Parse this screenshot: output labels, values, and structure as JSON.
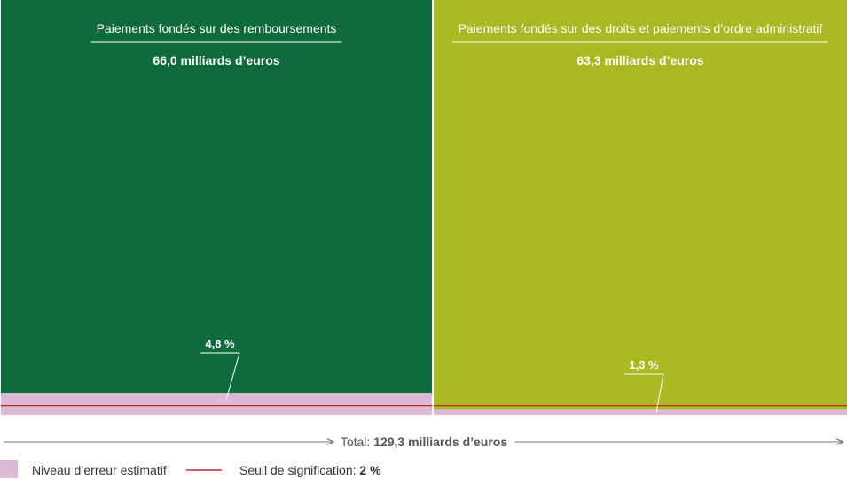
{
  "chart_data": {
    "type": "area",
    "categories": [
      {
        "name": "Paiements fondés sur des remboursements",
        "value_label": "66,0 milliards d’euros",
        "value": 66.0,
        "error_rate": 4.8,
        "error_label": "4,8 %"
      },
      {
        "name": "Paiements fondés sur des droits et paiements d’ordre administratif",
        "value_label": "63,3 milliards d’euros",
        "value": 63.3,
        "error_rate": 1.3,
        "error_label": "1,3 %"
      }
    ],
    "total": {
      "prefix": "Total:",
      "value_label": "129,3 milliards d’euros",
      "value": 129.3
    },
    "materiality_threshold": 2,
    "legend": {
      "error": "Niveau d’erreur estimatif",
      "threshold_prefix": "Seuil de signification:",
      "threshold_value": "2 %"
    },
    "colors": {
      "panel1": "#0f6b3b",
      "panel2": "#a9b921",
      "error_fill": "#dcbad6",
      "threshold_line": "#c0262d"
    }
  }
}
